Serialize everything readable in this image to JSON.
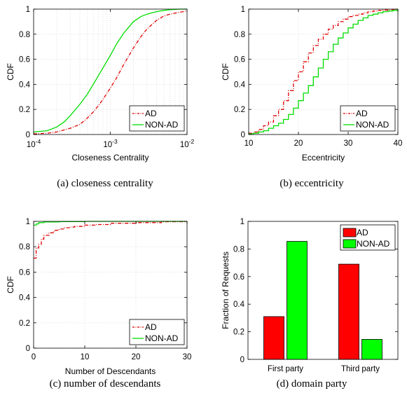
{
  "chart_data": [
    {
      "id": "a",
      "type": "line",
      "caption": "(a)  closeness centrality",
      "xlabel": "Closeness Centrality",
      "ylabel": "CDF",
      "xscale": "log",
      "xlim": [
        0.0001,
        0.01
      ],
      "ylim": [
        0,
        1
      ],
      "xticks": [
        {
          "v": 0.0001,
          "b": "10",
          "e": "-4"
        },
        {
          "v": 0.001,
          "b": "10",
          "e": "-3"
        },
        {
          "v": 0.01,
          "b": "10",
          "e": "-2"
        }
      ],
      "yticks": [
        {
          "v": 0,
          "t": "0"
        },
        {
          "v": 0.2,
          "t": "0.2"
        },
        {
          "v": 0.4,
          "t": "0.4"
        },
        {
          "v": 0.6,
          "t": "0.6"
        },
        {
          "v": 0.8,
          "t": "0.8"
        },
        {
          "v": 1,
          "t": "1"
        }
      ],
      "grid": true,
      "legend_position": "lower-right",
      "series": [
        {
          "name": "AD",
          "color": "#e00000",
          "style": "dashdot",
          "x": [
            0.0001,
            0.00015,
            0.0002,
            0.0003,
            0.0004,
            0.0005,
            0.0006,
            0.0007,
            0.0008,
            0.001,
            0.0012,
            0.0015,
            0.002,
            0.0025,
            0.003,
            0.004,
            0.005,
            0.006,
            0.008,
            0.01
          ],
          "y": [
            0.005,
            0.01,
            0.02,
            0.05,
            0.08,
            0.13,
            0.18,
            0.23,
            0.28,
            0.37,
            0.45,
            0.56,
            0.69,
            0.78,
            0.84,
            0.91,
            0.945,
            0.96,
            0.975,
            0.985
          ]
        },
        {
          "name": "NON-AD",
          "color": "#00dd00",
          "style": "solid",
          "x": [
            0.0001,
            0.00015,
            0.0002,
            0.00025,
            0.0003,
            0.0004,
            0.0005,
            0.0006,
            0.0007,
            0.0008,
            0.001,
            0.0012,
            0.0015,
            0.002,
            0.0025,
            0.003,
            0.004,
            0.005,
            0.006,
            0.008,
            0.01
          ],
          "y": [
            0.02,
            0.03,
            0.06,
            0.1,
            0.15,
            0.24,
            0.32,
            0.4,
            0.47,
            0.53,
            0.63,
            0.72,
            0.81,
            0.9,
            0.94,
            0.96,
            0.98,
            0.99,
            0.995,
            1.0,
            1.0
          ]
        }
      ]
    },
    {
      "id": "b",
      "type": "line",
      "caption": "(b)  eccentricity",
      "xlabel": "Eccentricity",
      "ylabel": "CDF",
      "xscale": "linear",
      "xlim": [
        10,
        40
      ],
      "ylim": [
        0,
        1
      ],
      "xticks": [
        {
          "v": 10,
          "t": "10"
        },
        {
          "v": 20,
          "t": "20"
        },
        {
          "v": 30,
          "t": "30"
        },
        {
          "v": 40,
          "t": "40"
        }
      ],
      "yticks": [
        {
          "v": 0,
          "t": "0"
        },
        {
          "v": 0.2,
          "t": "0.2"
        },
        {
          "v": 0.4,
          "t": "0.4"
        },
        {
          "v": 0.6,
          "t": "0.6"
        },
        {
          "v": 0.8,
          "t": "0.8"
        },
        {
          "v": 1,
          "t": "1"
        }
      ],
      "grid": true,
      "legend_position": "lower-right",
      "series": [
        {
          "name": "AD",
          "color": "#e00000",
          "style": "dashdot",
          "step": true,
          "x": [
            10,
            11,
            12,
            13,
            14,
            15,
            16,
            17,
            18,
            19,
            20,
            21,
            22,
            23,
            24,
            25,
            26,
            27,
            28,
            29,
            30,
            31,
            32,
            33,
            34,
            35,
            36,
            37,
            38,
            39,
            40
          ],
          "y": [
            0.01,
            0.02,
            0.04,
            0.07,
            0.1,
            0.15,
            0.2,
            0.27,
            0.35,
            0.43,
            0.5,
            0.58,
            0.65,
            0.71,
            0.76,
            0.8,
            0.84,
            0.87,
            0.9,
            0.92,
            0.94,
            0.95,
            0.96,
            0.97,
            0.98,
            0.985,
            0.99,
            0.993,
            0.996,
            0.998,
            1.0
          ]
        },
        {
          "name": "NON-AD",
          "color": "#00dd00",
          "style": "solid",
          "step": true,
          "x": [
            10,
            11,
            12,
            13,
            14,
            15,
            16,
            17,
            18,
            19,
            20,
            21,
            22,
            23,
            24,
            25,
            26,
            27,
            28,
            29,
            30,
            31,
            32,
            33,
            34,
            35,
            36,
            37,
            38,
            39,
            40
          ],
          "y": [
            0.005,
            0.01,
            0.02,
            0.03,
            0.05,
            0.07,
            0.09,
            0.12,
            0.16,
            0.21,
            0.27,
            0.33,
            0.39,
            0.46,
            0.53,
            0.6,
            0.66,
            0.72,
            0.77,
            0.81,
            0.85,
            0.88,
            0.91,
            0.93,
            0.95,
            0.96,
            0.97,
            0.98,
            0.985,
            0.99,
            1.0
          ]
        }
      ]
    },
    {
      "id": "c",
      "type": "line",
      "caption": "(c)  number of descendants",
      "xlabel": "Number of Descendants",
      "ylabel": "CDF",
      "xscale": "linear",
      "xlim": [
        0,
        30
      ],
      "ylim": [
        0,
        1
      ],
      "xticks": [
        {
          "v": 0,
          "t": "0"
        },
        {
          "v": 10,
          "t": "10"
        },
        {
          "v": 20,
          "t": "20"
        },
        {
          "v": 30,
          "t": "30"
        }
      ],
      "yticks": [
        {
          "v": 0,
          "t": "0"
        },
        {
          "v": 0.2,
          "t": "0.2"
        },
        {
          "v": 0.4,
          "t": "0.4"
        },
        {
          "v": 0.6,
          "t": "0.6"
        },
        {
          "v": 0.8,
          "t": "0.8"
        },
        {
          "v": 1,
          "t": "1"
        }
      ],
      "grid": true,
      "legend_position": "lower-right",
      "series": [
        {
          "name": "AD",
          "color": "#e00000",
          "style": "dashdot",
          "step": true,
          "x": [
            0,
            0.5,
            1,
            1.5,
            2,
            3,
            4,
            5,
            6,
            7,
            8,
            10,
            12,
            15,
            20,
            25,
            30
          ],
          "y": [
            0.71,
            0.79,
            0.82,
            0.86,
            0.89,
            0.91,
            0.93,
            0.94,
            0.95,
            0.955,
            0.96,
            0.97,
            0.975,
            0.985,
            0.99,
            0.997,
            1.0
          ]
        },
        {
          "name": "NON-AD",
          "color": "#00dd00",
          "style": "solid",
          "step": true,
          "x": [
            0,
            0.5,
            1,
            2,
            5,
            10,
            30
          ],
          "y": [
            0.97,
            0.98,
            0.99,
            0.995,
            0.998,
            1.0,
            1.0
          ]
        }
      ]
    },
    {
      "id": "d",
      "type": "bar",
      "caption": "(d)  domain party",
      "xlabel": "",
      "ylabel": "Fraction of Requests",
      "ylim": [
        0,
        1
      ],
      "yticks": [
        {
          "v": 0,
          "t": "0"
        },
        {
          "v": 0.2,
          "t": "0.2"
        },
        {
          "v": 0.4,
          "t": "0.4"
        },
        {
          "v": 0.6,
          "t": "0.6"
        },
        {
          "v": 0.8,
          "t": "0.8"
        },
        {
          "v": 1,
          "t": "1"
        }
      ],
      "grid": false,
      "legend_position": "top-right",
      "categories": [
        "First party",
        "Third party"
      ],
      "series": [
        {
          "name": "AD",
          "color": "#ff0000",
          "values": [
            0.31,
            0.69
          ]
        },
        {
          "name": "NON-AD",
          "color": "#00ff00",
          "values": [
            0.855,
            0.145
          ]
        }
      ]
    }
  ]
}
